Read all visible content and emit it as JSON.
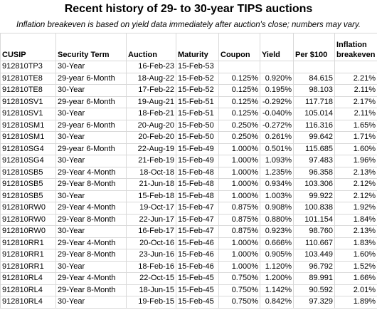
{
  "header": {
    "title": "Recent history of 29- to 30-year TIPS auctions",
    "subtitle": "Inflation breakeven is based on yield data immediately after auction's close; numbers may vary."
  },
  "table": {
    "columns": [
      "CUSIP",
      "Security Term",
      "Auction",
      "Maturity",
      "Coupon",
      "Yield",
      "Per $100",
      "Inflation breakeven"
    ],
    "rows": [
      [
        "912810TP3",
        "30-Year",
        "16-Feb-23",
        "15-Feb-53"
      ],
      [
        "912810TE8",
        "29-year 6-Month",
        "18-Aug-22",
        "15-Feb-52",
        "0.125%",
        "0.920%",
        "84.615",
        "2.21%"
      ],
      [
        "912810TE8",
        "30-Year",
        "17-Feb-22",
        "15-Feb-52",
        "0.125%",
        "0.195%",
        "98.103",
        "2.11%"
      ],
      [
        "912810SV1",
        "29-year 6-Month",
        "19-Aug-21",
        "15-Feb-51",
        "0.125%",
        "-0.292%",
        "117.718",
        "2.17%"
      ],
      [
        "912810SV1",
        "30-Year",
        "18-Feb-21",
        "15-Feb-51",
        "0.125%",
        "-0.040%",
        "105.014",
        "2.11%"
      ],
      [
        "912810SM1",
        "29-year 6-Month",
        "20-Aug-20",
        "15-Feb-50",
        "0.250%",
        "-0.272%",
        "116.316",
        "1.65%"
      ],
      [
        "912810SM1",
        "30-Year",
        "20-Feb-20",
        "15-Feb-50",
        "0.250%",
        "0.261%",
        "99.642",
        "1.71%"
      ],
      [
        "912810SG4",
        "29-year 6-Month",
        "22-Aug-19",
        "15-Feb-49",
        "1.000%",
        "0.501%",
        "115.685",
        "1.60%"
      ],
      [
        "912810SG4",
        "30-Year",
        "21-Feb-19",
        "15-Feb-49",
        "1.000%",
        "1.093%",
        "97.483",
        "1.96%"
      ],
      [
        "912810SB5",
        "29-Year 4-Month",
        "18-Oct-18",
        "15-Feb-48",
        "1.000%",
        "1.235%",
        "96.358",
        "2.13%"
      ],
      [
        "912810SB5",
        "29-Year 8-Month",
        "21-Jun-18",
        "15-Feb-48",
        "1.000%",
        "0.934%",
        "103.306",
        "2.12%"
      ],
      [
        "912810SB5",
        "30-Year",
        "15-Feb-18",
        "15-Feb-48",
        "1.000%",
        "1.003%",
        "99.922",
        "2.12%"
      ],
      [
        "912810RW0",
        "29-Year 4-Month",
        "19-Oct-17",
        "15-Feb-47",
        "0.875%",
        "0.908%",
        "100.838",
        "1.92%"
      ],
      [
        "912810RW0",
        "29-Year 8-Month",
        "22-Jun-17",
        "15-Feb-47",
        "0.875%",
        "0.880%",
        "101.154",
        "1.84%"
      ],
      [
        "912810RW0",
        "30-Year",
        "16-Feb-17",
        "15-Feb-47",
        "0.875%",
        "0.923%",
        "98.760",
        "2.13%"
      ],
      [
        "912810RR1",
        "29-Year 4-Month",
        "20-Oct-16",
        "15-Feb-46",
        "1.000%",
        "0.666%",
        "110.667",
        "1.83%"
      ],
      [
        "912810RR1",
        "29-Year 8-Month",
        "23-Jun-16",
        "15-Feb-46",
        "1.000%",
        "0.905%",
        "103.449",
        "1.60%"
      ],
      [
        "912810RR1",
        "30-Year",
        "18-Feb-16",
        "15-Feb-46",
        "1.000%",
        "1.120%",
        "96.792",
        "1.52%"
      ],
      [
        "912810RL4",
        "29-Year 4-Month",
        "22-Oct-15",
        "15-Feb-45",
        "0.750%",
        "1.200%",
        "89.991",
        "1.66%"
      ],
      [
        "912810RL4",
        "29-Year 8-Month",
        "18-Jun-15",
        "15-Feb-45",
        "0.750%",
        "1.142%",
        "90.592",
        "2.01%"
      ],
      [
        "912810RL4",
        "30-Year",
        "19-Feb-15",
        "15-Feb-45",
        "0.750%",
        "0.842%",
        "97.329",
        "1.89%"
      ]
    ]
  }
}
